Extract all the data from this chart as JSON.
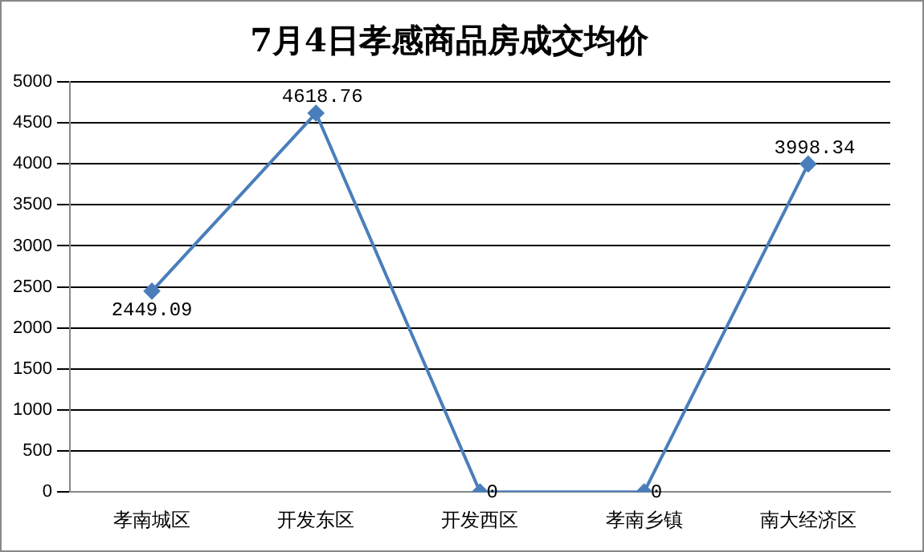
{
  "chart_data": {
    "type": "line",
    "title": "7月4日孝感商品房成交均价",
    "categories": [
      "孝南城区",
      "开发东区",
      "开发西区",
      "孝南乡镇",
      "南大经济区"
    ],
    "values": [
      2449.09,
      4618.76,
      0,
      0,
      3998.34
    ],
    "color": "#4a7ebb",
    "ylim": [
      0,
      5000
    ],
    "yticks": [
      0,
      500,
      1000,
      1500,
      2000,
      2500,
      3000,
      3500,
      4000,
      4500,
      5000
    ],
    "grid": "y",
    "legend": false,
    "marker": "diamond",
    "line_style": "solid",
    "data_labels": true
  }
}
